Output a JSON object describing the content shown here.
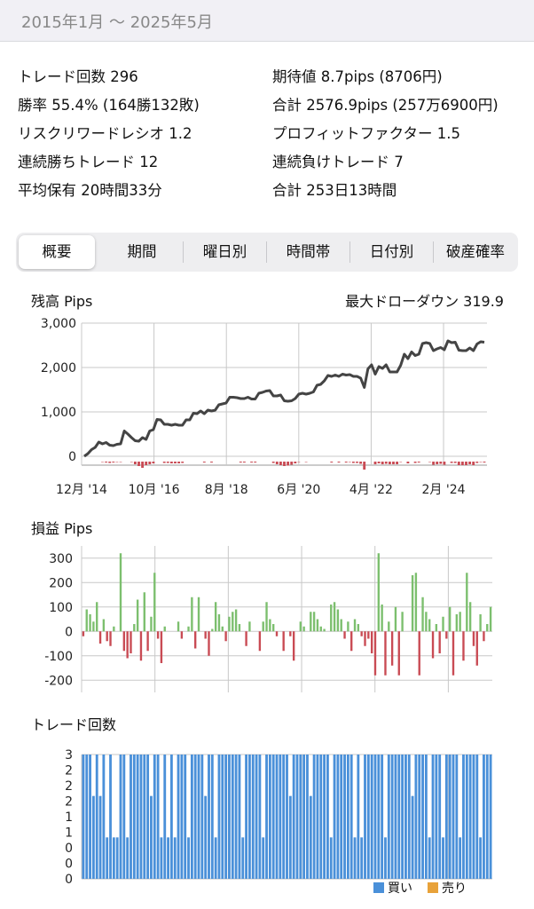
{
  "header": {
    "period": "2015年1月 〜 2025年5月"
  },
  "stats": {
    "left": [
      "トレード回数 296",
      "勝率 55.4% (164勝132敗)",
      "リスクリワードレシオ 1.2",
      "連続勝ちトレード 12",
      "平均保有 20時間33分"
    ],
    "right": [
      "期待値 8.7pips (8706円)",
      "合計 2576.9pips (257万6900円)",
      "プロフィットファクター 1.5",
      "連続負けトレード 7",
      "合計 253日13時間"
    ]
  },
  "tabs": [
    "概要",
    "期間",
    "曜日別",
    "時間帯",
    "日付別",
    "破産確率"
  ],
  "colors": {
    "line": "#444444",
    "profit": "#7cbf6e",
    "loss": "#c94b54",
    "buy": "#4a90d9",
    "sell": "#e8a23a",
    "grid": "#c8c8c8"
  },
  "chart_data": [
    {
      "type": "line",
      "title": "残高 Pips",
      "annotation": "最大ドローダウン 319.9",
      "yticks": [
        "3,000",
        "2,000",
        "1,000",
        "0"
      ],
      "xticks": [
        "12月 '14",
        "10月 '16",
        "8月 '18",
        "6月 '20",
        "4月 '22",
        "2月 '24"
      ],
      "ylim": [
        -200,
        3000
      ],
      "values": [
        0,
        60,
        150,
        200,
        320,
        280,
        310,
        250,
        240,
        270,
        280,
        570,
        500,
        420,
        350,
        340,
        420,
        380,
        570,
        600,
        830,
        820,
        720,
        720,
        700,
        720,
        700,
        700,
        820,
        820,
        970,
        960,
        1020,
        960,
        1040,
        1020,
        1040,
        1160,
        1180,
        1200,
        1330,
        1330,
        1320,
        1300,
        1300,
        1330,
        1290,
        1290,
        1420,
        1440,
        1470,
        1480,
        1360,
        1360,
        1380,
        1250,
        1240,
        1250,
        1300,
        1400,
        1420,
        1400,
        1420,
        1450,
        1600,
        1620,
        1700,
        1820,
        1800,
        1830,
        1800,
        1850,
        1830,
        1840,
        1800,
        1800,
        1760,
        1550,
        1970,
        2060,
        1850,
        2020,
        1980,
        2060,
        1900,
        1900,
        1900,
        2050,
        2300,
        2200,
        2350,
        2270,
        2300,
        2540,
        2560,
        2540,
        2380,
        2420,
        2450,
        2400,
        2600,
        2560,
        2570,
        2390,
        2380,
        2380,
        2440,
        2380,
        2530,
        2580,
        2570
      ],
      "drawdown": [
        0,
        0,
        0,
        0,
        0,
        10,
        20,
        30,
        20,
        10,
        10,
        0,
        0,
        10,
        60,
        100,
        140,
        80,
        60,
        40,
        0,
        0,
        30,
        30,
        40,
        40,
        40,
        30,
        0,
        0,
        0,
        0,
        0,
        20,
        0,
        20,
        0,
        0,
        0,
        0,
        0,
        0,
        0,
        20,
        20,
        0,
        20,
        20,
        0,
        0,
        0,
        0,
        30,
        60,
        80,
        100,
        90,
        70,
        40,
        10,
        0,
        10,
        0,
        0,
        0,
        0,
        0,
        0,
        20,
        0,
        20,
        0,
        20,
        10,
        30,
        30,
        50,
        180,
        0,
        0,
        60,
        40,
        60,
        50,
        60,
        60,
        60,
        10,
        0,
        40,
        0,
        30,
        20,
        0,
        0,
        10,
        70,
        60,
        50,
        70,
        0,
        30,
        30,
        80,
        80,
        80,
        60,
        80,
        30,
        10,
        20
      ]
    },
    {
      "type": "bar",
      "title": "損益 Pips",
      "yticks": [
        "300",
        "200",
        "100",
        "0",
        "-100",
        "-200"
      ],
      "ylim": [
        -250,
        350
      ],
      "values": [
        -20,
        90,
        70,
        40,
        120,
        -50,
        50,
        -40,
        -60,
        20,
        0,
        320,
        -80,
        -110,
        -90,
        30,
        130,
        -120,
        160,
        -80,
        60,
        240,
        -30,
        -130,
        20,
        0,
        0,
        0,
        40,
        -30,
        0,
        20,
        140,
        -70,
        140,
        0,
        -30,
        -100,
        10,
        120,
        70,
        20,
        -40,
        60,
        80,
        90,
        30,
        0,
        -60,
        40,
        0,
        0,
        -80,
        40,
        120,
        50,
        30,
        -20,
        0,
        -80,
        0,
        -20,
        -120,
        0,
        40,
        20,
        0,
        80,
        80,
        50,
        20,
        10,
        0,
        110,
        120,
        90,
        50,
        -30,
        40,
        -80,
        50,
        30,
        -20,
        -60,
        -30,
        -90,
        -180,
        320,
        110,
        -180,
        40,
        -140,
        100,
        -180,
        80,
        0,
        0,
        230,
        240,
        -180,
        140,
        80,
        50,
        -110,
        30,
        -90,
        60,
        -30,
        100,
        -180,
        70,
        80,
        -120,
        240,
        120,
        -60,
        -140,
        70,
        -40,
        30,
        100
      ],
      "xticks": []
    },
    {
      "type": "bar",
      "title": "トレード回数",
      "yticks": [
        "3",
        "2",
        "2",
        "2",
        "1",
        "1",
        "0",
        "0",
        "0"
      ],
      "ylim": [
        0,
        3
      ],
      "series": [
        {
          "name": "買い",
          "values": [
            3,
            3,
            3,
            2,
            3,
            2,
            3,
            1,
            3,
            1,
            1,
            3,
            3,
            1,
            3,
            3,
            3,
            3,
            3,
            3,
            2,
            3,
            3,
            1,
            3,
            1,
            3,
            1,
            3,
            3,
            3,
            1,
            3,
            3,
            3,
            3,
            2,
            3,
            3,
            1,
            3,
            3,
            3,
            3,
            3,
            3,
            3,
            1,
            3,
            3,
            3,
            3,
            3,
            1,
            3,
            3,
            3,
            3,
            3,
            3,
            3,
            2,
            3,
            3,
            3,
            3,
            3,
            2,
            3,
            3,
            3,
            3,
            3,
            1,
            3,
            3,
            3,
            3,
            3,
            3,
            1,
            3,
            1,
            3,
            3,
            3,
            3,
            3,
            3,
            1,
            3,
            3,
            3,
            3,
            3,
            3,
            3,
            2,
            3,
            3,
            3,
            3,
            1,
            3,
            3,
            3,
            1,
            3,
            3,
            3,
            3,
            1,
            3,
            3,
            3,
            3,
            3,
            1,
            3,
            3,
            3
          ]
        },
        {
          "name": "売り",
          "values": []
        }
      ]
    }
  ]
}
